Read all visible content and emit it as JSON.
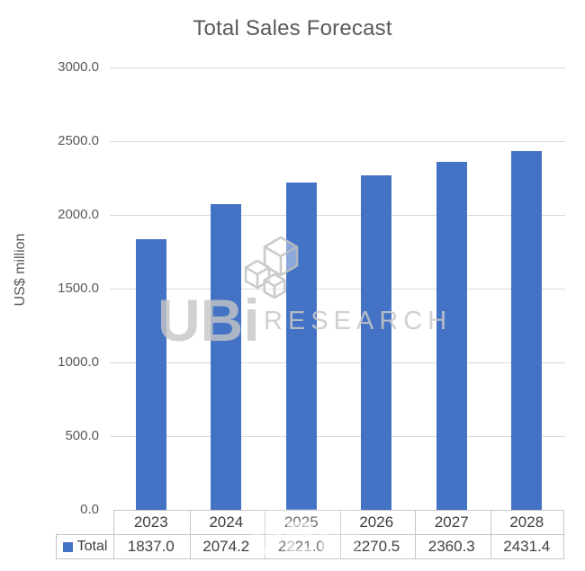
{
  "title": "Total Sales Forecast",
  "chart_data": {
    "type": "bar",
    "title": "Total Sales Forecast",
    "xlabel": "",
    "ylabel": "US$ million",
    "categories": [
      "2023",
      "2024",
      "2025",
      "2026",
      "2027",
      "2028"
    ],
    "series": [
      {
        "name": "Total",
        "values": [
          1837.0,
          2074.2,
          2221.0,
          2270.5,
          2360.3,
          2431.4
        ]
      }
    ],
    "ylim": [
      0,
      3000
    ],
    "yticks": [
      0,
      500,
      1000,
      1500,
      2000,
      2500,
      3000
    ],
    "ytick_labels": [
      "0.0",
      "500.0",
      "1000.0",
      "1500.0",
      "2000.0",
      "2500.0",
      "3000.0"
    ],
    "grid": true,
    "legend_position": "data-table-left",
    "bar_color": "#4472C4",
    "data_table": true
  },
  "watermark": {
    "brand": "UBi",
    "brand_text": "RESEARCH",
    "table_overlay": "UBi"
  },
  "colors": {
    "bar": "#4472C4",
    "title_text": "#595959",
    "axis_text": "#595959",
    "table_text": "#404040",
    "gridline": "#d9d9d9",
    "table_border": "#c6c6c6",
    "watermark_gray": "#c3c3c3"
  }
}
